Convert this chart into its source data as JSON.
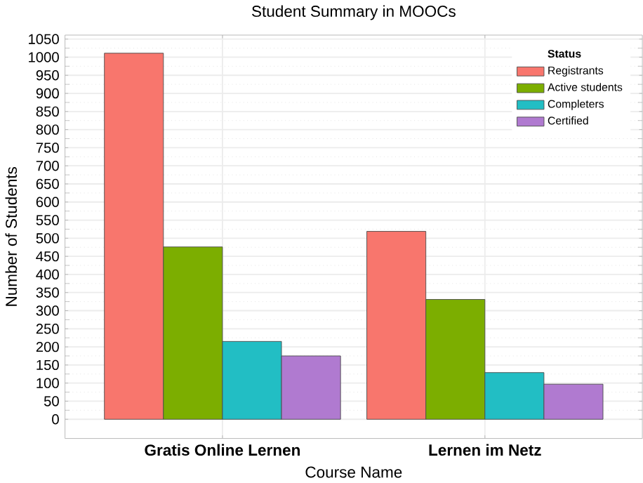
{
  "chart_data": {
    "type": "bar",
    "title": "Student Summary in MOOCs",
    "xlabel": "Course Name",
    "ylabel": "Number of Students",
    "legend_title": "Status",
    "categories": [
      "Gratis Online Lernen",
      "Lernen im Netz"
    ],
    "series": [
      {
        "name": "Registrants",
        "color": "#f8766d",
        "values": [
          1011,
          519
        ]
      },
      {
        "name": "Active students",
        "color": "#7cae00",
        "values": [
          476,
          331
        ]
      },
      {
        "name": "Completers",
        "color": "#22bec4",
        "values": [
          215,
          129
        ]
      },
      {
        "name": "Certified",
        "color": "#b07ad0",
        "values": [
          175,
          97
        ]
      }
    ],
    "ylim": [
      -53,
      1061
    ],
    "yticks": [
      0,
      50,
      100,
      150,
      200,
      250,
      300,
      350,
      400,
      450,
      500,
      550,
      600,
      650,
      700,
      750,
      800,
      850,
      900,
      950,
      1000,
      1050
    ],
    "grid": true,
    "legend": "top right"
  }
}
